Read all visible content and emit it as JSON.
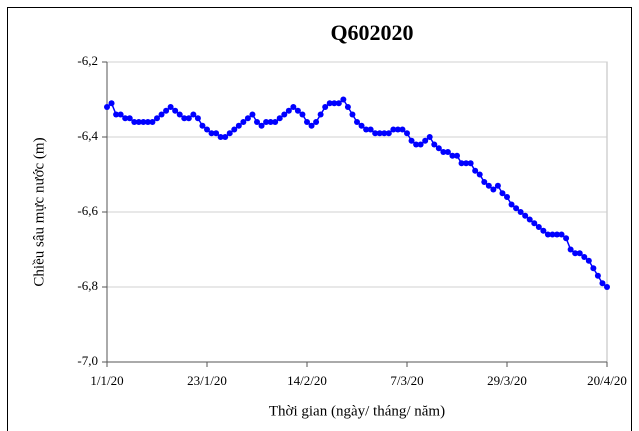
{
  "chart_data": {
    "type": "line",
    "title": "Q602020",
    "ylabel": "Chiều sâu mực nước (m)",
    "xlabel": "Thời gian (ngày/ tháng/ năm)",
    "categories": [
      "1/1/20",
      null,
      null,
      null,
      null,
      null,
      null,
      null,
      null,
      null,
      null,
      null,
      null,
      null,
      null,
      null,
      null,
      null,
      null,
      null,
      null,
      null,
      "23/1/20",
      null,
      null,
      null,
      null,
      null,
      null,
      null,
      null,
      null,
      null,
      null,
      null,
      null,
      null,
      null,
      null,
      null,
      null,
      null,
      null,
      null,
      "14/2/20",
      null,
      null,
      null,
      null,
      null,
      null,
      null,
      null,
      null,
      null,
      null,
      null,
      null,
      null,
      null,
      null,
      null,
      null,
      null,
      null,
      null,
      "7/3/20",
      null,
      null,
      null,
      null,
      null,
      null,
      null,
      null,
      null,
      null,
      null,
      null,
      null,
      null,
      null,
      null,
      null,
      null,
      null,
      null,
      null,
      "29/3/20",
      null,
      null,
      null,
      null,
      null,
      null,
      null,
      null,
      null,
      null,
      null,
      null,
      null,
      null,
      null,
      null,
      null,
      null,
      null,
      null,
      null,
      "20/4/20"
    ],
    "values": [
      -6.32,
      -6.31,
      -6.34,
      -6.34,
      -6.35,
      -6.35,
      -6.36,
      -6.36,
      -6.36,
      -6.36,
      -6.36,
      -6.35,
      -6.34,
      -6.33,
      -6.32,
      -6.33,
      -6.34,
      -6.35,
      -6.35,
      -6.34,
      -6.35,
      -6.37,
      -6.38,
      -6.39,
      -6.39,
      -6.4,
      -6.4,
      -6.39,
      -6.38,
      -6.37,
      -6.36,
      -6.35,
      -6.34,
      -6.36,
      -6.37,
      -6.36,
      -6.36,
      -6.36,
      -6.35,
      -6.34,
      -6.33,
      -6.32,
      -6.33,
      -6.34,
      -6.36,
      -6.37,
      -6.36,
      -6.34,
      -6.32,
      -6.31,
      -6.31,
      -6.31,
      -6.3,
      -6.32,
      -6.34,
      -6.36,
      -6.37,
      -6.38,
      -6.38,
      -6.39,
      -6.39,
      -6.39,
      -6.39,
      -6.38,
      -6.38,
      -6.38,
      -6.39,
      -6.41,
      -6.42,
      -6.42,
      -6.41,
      -6.4,
      -6.42,
      -6.43,
      -6.44,
      -6.44,
      -6.45,
      -6.45,
      -6.47,
      -6.47,
      -6.47,
      -6.49,
      -6.5,
      -6.52,
      -6.53,
      -6.54,
      -6.53,
      -6.55,
      -6.56,
      -6.58,
      -6.59,
      -6.6,
      -6.61,
      -6.62,
      -6.63,
      -6.64,
      -6.65,
      -6.66,
      -6.66,
      -6.66,
      -6.66,
      -6.67,
      -6.7,
      -6.71,
      -6.71,
      -6.72,
      -6.73,
      -6.75,
      -6.77,
      -6.79,
      -6.8
    ],
    "color": "#0000ff",
    "ylim": [
      -7.0,
      -6.2
    ],
    "yticks": [
      {
        "value": -7.0,
        "label": "-7,0"
      },
      {
        "value": -6.8,
        "label": "-6,8"
      },
      {
        "value": -6.6,
        "label": "-6,6"
      },
      {
        "value": -6.4,
        "label": "-6,4"
      },
      {
        "value": -6.2,
        "label": "-6,2"
      }
    ],
    "grid": true
  }
}
